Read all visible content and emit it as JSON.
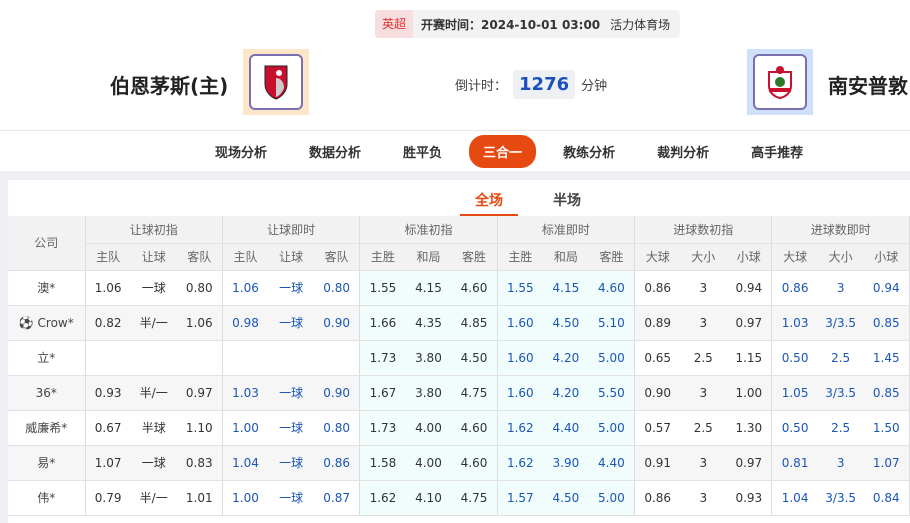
{
  "match": {
    "league": "英超",
    "kickoff": "开赛时间：2024-10-01 03:00",
    "venue": "活力体育场",
    "home": "伯恩茅斯(主)",
    "away": "南安普敦",
    "countdown_label": "倒计时：",
    "countdown": "1276",
    "countdown_unit": "分钟"
  },
  "nav": [
    "现场分析",
    "数据分析",
    "胜平负",
    "三合一",
    "教练分析",
    "裁判分析",
    "高手推荐"
  ],
  "nav_active": "三合一",
  "subtabs": [
    "全场",
    "半场"
  ],
  "table": {
    "company_header": "公司",
    "groups": [
      "让球初指",
      "让球即时",
      "标准初指",
      "标准即时",
      "进球数初指",
      "进球数即时"
    ],
    "subheaders": [
      "主队",
      "让球",
      "客队",
      "主队",
      "让球",
      "客队",
      "主胜",
      "和局",
      "客胜",
      "主胜",
      "和局",
      "客胜",
      "大球",
      "大小",
      "小球",
      "大球",
      "大小",
      "小球"
    ],
    "rows": [
      {
        "company": "澳*",
        "v": [
          "1.06",
          "一球",
          "0.80",
          "1.06",
          "一球",
          "0.80",
          "1.55",
          "4.15",
          "4.60",
          "1.55",
          "4.15",
          "4.60",
          "0.86",
          "3",
          "0.94",
          "0.86",
          "3",
          "0.94"
        ]
      },
      {
        "company": "Crow*",
        "icon": "football-icon",
        "v": [
          "0.82",
          "半/一",
          "1.06",
          "0.98",
          "一球",
          "0.90",
          "1.66",
          "4.35",
          "4.85",
          "1.60",
          "4.50",
          "5.10",
          "0.89",
          "3",
          "0.97",
          "1.03",
          "3/3.5",
          "0.85"
        ]
      },
      {
        "company": "立*",
        "v": [
          "",
          "",
          "",
          "",
          "",
          "",
          "1.73",
          "3.80",
          "4.50",
          "1.60",
          "4.20",
          "5.00",
          "0.65",
          "2.5",
          "1.15",
          "0.50",
          "2.5",
          "1.45"
        ]
      },
      {
        "company": "36*",
        "v": [
          "0.93",
          "半/一",
          "0.97",
          "1.03",
          "一球",
          "0.90",
          "1.67",
          "3.80",
          "4.75",
          "1.60",
          "4.20",
          "5.50",
          "0.90",
          "3",
          "1.00",
          "1.05",
          "3/3.5",
          "0.85"
        ]
      },
      {
        "company": "威廉希*",
        "v": [
          "0.67",
          "半球",
          "1.10",
          "1.00",
          "一球",
          "0.80",
          "1.73",
          "4.00",
          "4.60",
          "1.62",
          "4.40",
          "5.00",
          "0.57",
          "2.5",
          "1.30",
          "0.50",
          "2.5",
          "1.50"
        ]
      },
      {
        "company": "易*",
        "v": [
          "1.07",
          "一球",
          "0.83",
          "1.04",
          "一球",
          "0.86",
          "1.58",
          "4.00",
          "4.60",
          "1.62",
          "3.90",
          "4.40",
          "0.91",
          "3",
          "0.97",
          "0.81",
          "3",
          "1.07"
        ]
      },
      {
        "company": "伟*",
        "v": [
          "0.79",
          "半/一",
          "1.01",
          "1.00",
          "一球",
          "0.87",
          "1.62",
          "4.10",
          "4.75",
          "1.57",
          "4.50",
          "5.00",
          "0.86",
          "3",
          "0.93",
          "1.04",
          "3/3.5",
          "0.84"
        ]
      }
    ]
  },
  "colors": {
    "accent": "#e64a10",
    "live_odds": "#1a56b8",
    "league_bg": "#f7dede"
  }
}
